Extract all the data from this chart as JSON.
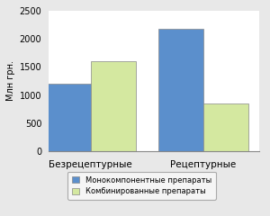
{
  "categories": [
    "Безрецептурные",
    "Рецептурные"
  ],
  "series": [
    {
      "name": "Монокомпонентные препараты",
      "values": [
        1200,
        2175
      ],
      "color": "#5b8fcc"
    },
    {
      "name": "Комбинированные препараты",
      "values": [
        1600,
        850
      ],
      "color": "#d4e8a0"
    }
  ],
  "ylabel": "Млн грн.",
  "ylim": [
    0,
    2500
  ],
  "yticks": [
    0,
    500,
    1000,
    1500,
    2000,
    2500
  ],
  "bar_width": 0.32,
  "group_positions": [
    0.3,
    1.1
  ],
  "background_color": "#e8e8e8",
  "plot_background": "#ffffff",
  "legend_fontsize": 6.0,
  "ylabel_fontsize": 7,
  "tick_fontsize": 7,
  "xtick_fontsize": 7.5
}
